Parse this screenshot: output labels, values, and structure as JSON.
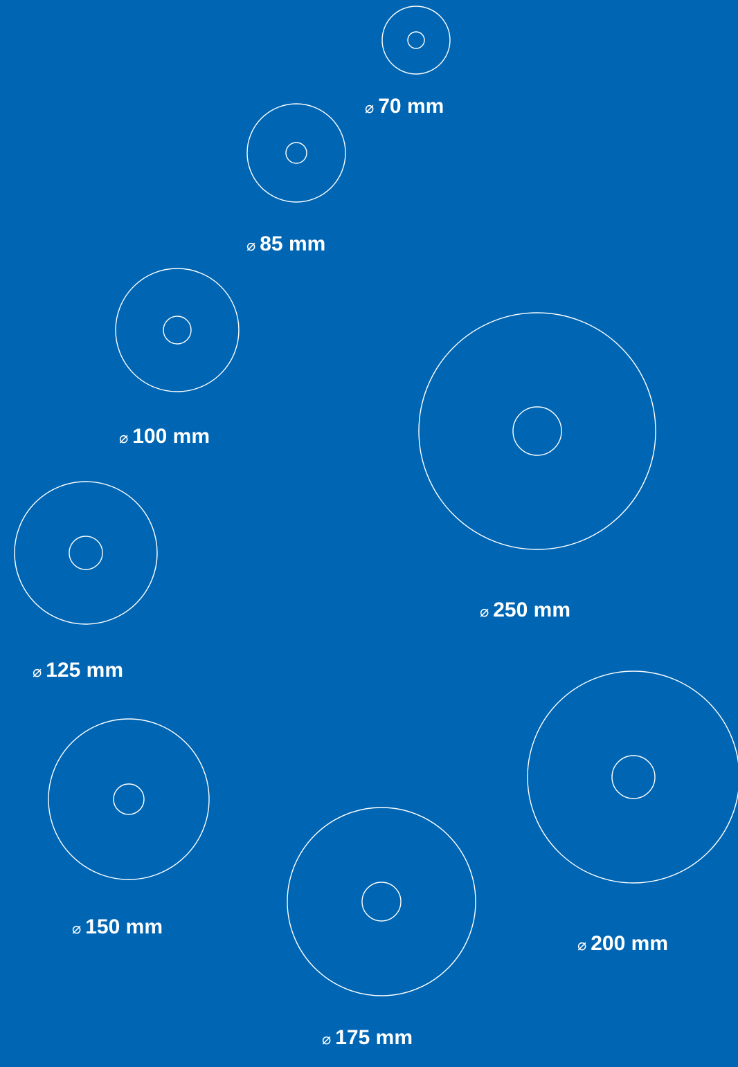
{
  "colors": {
    "background": "#0066b3",
    "line": "#ffffff",
    "text": "#ffffff"
  },
  "diameter_symbol": "⌀",
  "discs": [
    {
      "id": "70",
      "diameter_mm": 70,
      "label": "70 mm"
    },
    {
      "id": "85",
      "diameter_mm": 85,
      "label": "85 mm"
    },
    {
      "id": "100",
      "diameter_mm": 100,
      "label": "100 mm"
    },
    {
      "id": "250",
      "diameter_mm": 250,
      "label": "250 mm"
    },
    {
      "id": "125",
      "diameter_mm": 125,
      "label": "125 mm"
    },
    {
      "id": "150",
      "diameter_mm": 150,
      "label": "150 mm"
    },
    {
      "id": "175",
      "diameter_mm": 175,
      "label": "175 mm"
    },
    {
      "id": "200",
      "diameter_mm": 200,
      "label": "200 mm"
    }
  ]
}
